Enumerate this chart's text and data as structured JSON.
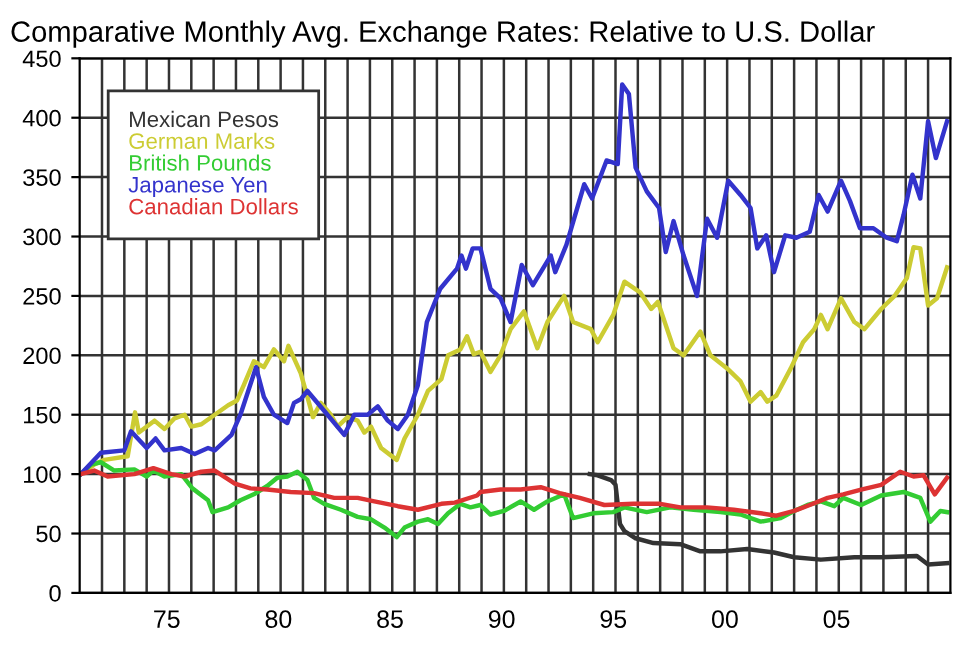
{
  "chart_data": {
    "type": "line",
    "title": "Comparative Monthly Avg. Exchange Rates: Relative to U.S. Dollar",
    "xlim": [
      1971.1,
      2010.1
    ],
    "ylim": [
      0,
      450
    ],
    "yticks": [
      0,
      50,
      100,
      150,
      200,
      250,
      300,
      350,
      400,
      450
    ],
    "xticks": [
      {
        "value": 1975,
        "label": "75"
      },
      {
        "value": 1980,
        "label": "80"
      },
      {
        "value": 1985,
        "label": "85"
      },
      {
        "value": 1990,
        "label": "90"
      },
      {
        "value": 1995,
        "label": "95"
      },
      {
        "value": 2000,
        "label": "00"
      },
      {
        "value": 2005,
        "label": "05"
      }
    ],
    "grid": true,
    "legend": "top left",
    "marker": "none",
    "line_style": "solid",
    "series": [
      {
        "name": "Mexican Pesos",
        "color": "#333333",
        "x": [
          1993.95,
          1994.3,
          1994.9,
          1995.1,
          1995.3,
          1995.5,
          1996.0,
          1996.8,
          1998.0,
          1998.9,
          1999.8,
          2001.0,
          2002.2,
          2003.1,
          2004.3,
          2005.8,
          2007.0,
          2008.6,
          2009.1,
          2009.95
        ],
        "values": [
          100,
          99,
          95,
          91,
          58,
          52,
          46,
          42,
          41,
          35,
          35,
          37,
          34,
          30,
          28,
          30,
          30,
          31,
          24,
          25
        ]
      },
      {
        "name": "German Marks",
        "color": "#cccc33",
        "x": [
          1971.15,
          1971.75,
          1972.2,
          1973.25,
          1973.58,
          1973.75,
          1974.45,
          1974.9,
          1975.35,
          1975.8,
          1976.1,
          1976.55,
          1977.15,
          1977.75,
          1978.15,
          1978.45,
          1978.9,
          1979.35,
          1979.8,
          1980.25,
          1980.45,
          1981.0,
          1981.3,
          1981.55,
          1981.9,
          1982.35,
          1982.65,
          1983.1,
          1983.55,
          1983.85,
          1984.15,
          1984.6,
          1985.3,
          1985.65,
          1986.25,
          1986.7,
          1987.3,
          1987.6,
          1988.15,
          1988.45,
          1988.75,
          1989.05,
          1989.5,
          1989.95,
          1990.4,
          1991.0,
          1991.6,
          1992.05,
          1992.8,
          1993.2,
          1994.0,
          1994.3,
          1995.0,
          1995.5,
          1996.2,
          1996.7,
          1997.0,
          1997.7,
          1998.15,
          1998.9,
          1999.35,
          2000.1,
          2000.7,
          2001.15,
          2001.6,
          2001.9,
          2002.3,
          2002.95,
          2003.5,
          2004.0,
          2004.3,
          2004.6,
          2005.2,
          2005.8,
          2006.25,
          2007.0,
          2007.6,
          2008.15,
          2008.45,
          2008.75,
          2009.1,
          2009.5,
          2009.95
        ],
        "values": [
          100,
          108,
          112,
          115,
          152,
          135,
          145,
          138,
          147,
          150,
          140,
          142,
          150,
          158,
          162,
          175,
          195,
          190,
          205,
          195,
          208,
          185,
          165,
          148,
          160,
          150,
          140,
          148,
          145,
          135,
          140,
          122,
          112,
          130,
          150,
          170,
          180,
          200,
          205,
          216,
          201,
          203,
          186,
          200,
          222,
          237,
          206,
          228,
          250,
          228,
          222,
          211,
          234,
          262,
          253,
          239,
          245,
          206,
          200,
          220,
          200,
          189,
          178,
          161,
          169,
          161,
          166,
          189,
          211,
          222,
          234,
          222,
          248,
          228,
          222,
          239,
          250,
          265,
          291,
          290,
          242,
          248,
          274
        ]
      },
      {
        "name": "British Pounds",
        "color": "#33cc33",
        "x": [
          1971.15,
          1971.6,
          1972.05,
          1972.65,
          1973.55,
          1974.1,
          1974.4,
          1974.9,
          1975.65,
          1976.15,
          1976.85,
          1977.05,
          1977.75,
          1978.3,
          1978.9,
          1979.5,
          1979.95,
          1980.4,
          1980.85,
          1981.3,
          1981.6,
          1982.05,
          1982.8,
          1983.55,
          1984.15,
          1984.75,
          1985.3,
          1985.65,
          1986.25,
          1986.7,
          1987.15,
          1987.6,
          1988.15,
          1988.6,
          1989.05,
          1989.5,
          1990.1,
          1990.85,
          1991.45,
          1992.05,
          1992.8,
          1993.2,
          1994.1,
          1995.0,
          1995.5,
          1996.5,
          1997.55,
          1998.6,
          1999.8,
          2000.7,
          2001.6,
          2002.5,
          2003.1,
          2003.7,
          2004.3,
          2004.9,
          2005.3,
          2006.1,
          2007.0,
          2008.0,
          2008.75,
          2009.2,
          2009.65,
          2009.95
        ],
        "values": [
          100,
          108,
          110,
          103,
          104,
          98,
          103,
          98,
          100,
          88,
          78,
          68,
          72,
          78,
          83,
          90,
          97,
          98,
          102,
          95,
          80,
          75,
          70,
          64,
          62,
          55,
          47,
          55,
          60,
          62,
          58,
          67,
          75,
          72,
          74,
          66,
          69,
          77,
          70,
          77,
          83,
          63,
          67,
          68,
          72,
          68,
          72,
          70,
          68,
          66,
          60,
          63,
          69,
          74,
          77,
          73,
          80,
          74,
          82,
          85,
          80,
          60,
          69,
          68
        ]
      },
      {
        "name": "Japanese Yen",
        "color": "#3333cc",
        "x": [
          1971.15,
          1972.05,
          1973.1,
          1973.4,
          1973.7,
          1974.1,
          1974.5,
          1974.9,
          1975.65,
          1976.25,
          1976.85,
          1977.15,
          1977.9,
          1978.3,
          1979.0,
          1979.35,
          1979.8,
          1980.4,
          1980.7,
          1981.0,
          1981.3,
          1982.2,
          1982.95,
          1983.4,
          1984.0,
          1984.45,
          1984.9,
          1985.35,
          1985.8,
          1986.25,
          1986.65,
          1987.25,
          1988.0,
          1988.2,
          1988.4,
          1988.7,
          1989.05,
          1989.5,
          1989.95,
          1990.4,
          1990.9,
          1991.4,
          1992.2,
          1992.4,
          1992.9,
          1993.7,
          1994.05,
          1994.7,
          1995.2,
          1995.4,
          1995.7,
          1996.0,
          1996.5,
          1997.05,
          1997.35,
          1997.7,
          1998.15,
          1998.75,
          1999.2,
          1999.65,
          2000.15,
          2000.7,
          2001.15,
          2001.45,
          2001.85,
          2002.2,
          2002.7,
          2003.2,
          2003.8,
          2004.2,
          2004.6,
          2005.2,
          2005.6,
          2006.05,
          2006.65,
          2007.25,
          2007.7,
          2008.0,
          2008.4,
          2008.75,
          2009.1,
          2009.45,
          2009.95
        ],
        "values": [
          100,
          118,
          120,
          136,
          130,
          122,
          130,
          120,
          122,
          117,
          122,
          120,
          133,
          150,
          190,
          165,
          150,
          143,
          160,
          163,
          170,
          150,
          133,
          150,
          150,
          157,
          145,
          138,
          150,
          175,
          228,
          256,
          273,
          284,
          273,
          290,
          290,
          256,
          248,
          228,
          276,
          259,
          284,
          270,
          293,
          344,
          332,
          364,
          361,
          428,
          420,
          358,
          338,
          324,
          287,
          313,
          284,
          250,
          315,
          299,
          347,
          335,
          324,
          290,
          301,
          270,
          301,
          299,
          304,
          335,
          321,
          347,
          330,
          307,
          307,
          299,
          296,
          318,
          352,
          332,
          397,
          366,
          397
        ]
      },
      {
        "name": "Canadian Dollars",
        "color": "#dd3333",
        "x": [
          1971.15,
          1971.75,
          1972.35,
          1973.55,
          1974.4,
          1975.2,
          1975.8,
          1976.55,
          1977.15,
          1978.05,
          1978.75,
          1979.5,
          1980.55,
          1981.6,
          1982.5,
          1983.55,
          1984.3,
          1985.35,
          1986.25,
          1987.3,
          1987.9,
          1988.9,
          1989.05,
          1989.95,
          1990.85,
          1991.75,
          1992.6,
          1993.5,
          1994.6,
          1995.9,
          1997.1,
          1998.0,
          1999.2,
          2000.4,
          2001.6,
          2002.3,
          2003.1,
          2003.8,
          2004.6,
          2005.3,
          2006.1,
          2007.0,
          2007.85,
          2008.45,
          2008.9,
          2009.4,
          2009.95
        ],
        "values": [
          100,
          103,
          98,
          100,
          105,
          100,
          98,
          102,
          103,
          92,
          88,
          87,
          85,
          84,
          80,
          80,
          77,
          73,
          70,
          75,
          76,
          82,
          85,
          87,
          87,
          89,
          84,
          80,
          74,
          75,
          75,
          72,
          72,
          70,
          67,
          65,
          69,
          74,
          80,
          83,
          87,
          91,
          102,
          98,
          99,
          83,
          97
        ]
      }
    ]
  }
}
